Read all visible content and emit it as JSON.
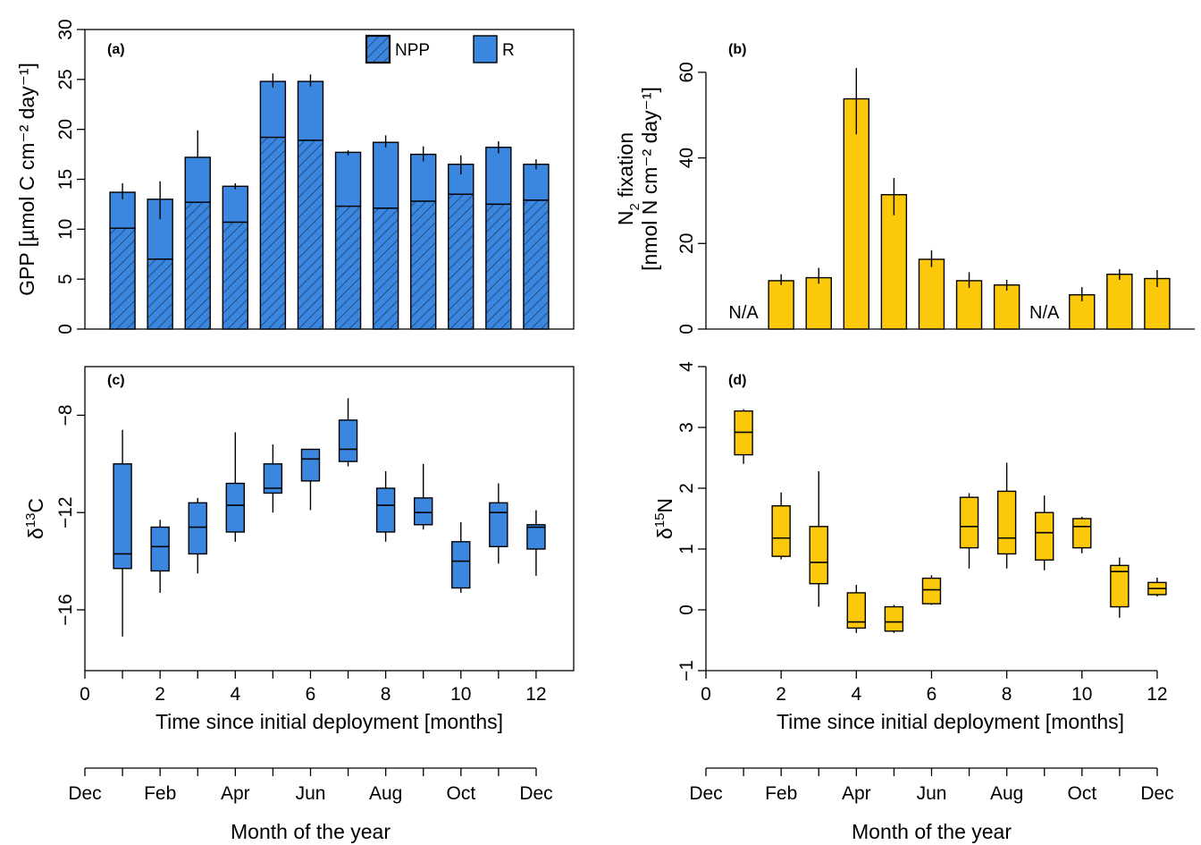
{
  "colors": {
    "blue": "#3b87e0",
    "yellow": "#fcc80a",
    "hatch": "#1a3c63"
  },
  "month_axis": {
    "labels": [
      "Dec",
      "Feb",
      "Apr",
      "Jun",
      "Aug",
      "Oct",
      "Dec"
    ],
    "title": "Month of the year"
  },
  "chart_data": [
    {
      "id": "a",
      "panel_label": "(a)",
      "type": "bar",
      "stacked": true,
      "ylabel": "GPP [µmol C cm⁻² day⁻¹]",
      "ylim": [
        0,
        30
      ],
      "yticks": [
        0,
        5,
        10,
        15,
        20,
        25,
        30
      ],
      "xlim": [
        0,
        13
      ],
      "x": [
        1,
        2,
        3,
        4,
        5,
        6,
        7,
        8,
        9,
        10,
        11,
        12
      ],
      "legend": [
        "NPP",
        "R"
      ],
      "series": [
        {
          "name": "NPP",
          "pattern": "hatched",
          "values": [
            10.1,
            7.0,
            12.7,
            10.7,
            19.2,
            18.9,
            12.3,
            12.1,
            12.8,
            13.5,
            12.5,
            12.9
          ]
        },
        {
          "name": "R",
          "values": [
            3.6,
            6.0,
            4.5,
            3.6,
            5.6,
            5.9,
            5.4,
            6.6,
            4.7,
            3.0,
            5.7,
            3.6
          ]
        }
      ],
      "totals": [
        13.7,
        13.0,
        17.2,
        14.3,
        24.8,
        24.8,
        17.7,
        18.7,
        17.5,
        16.5,
        18.2,
        16.5
      ],
      "error_upper": [
        14.6,
        14.8,
        19.9,
        14.6,
        25.6,
        25.5,
        17.9,
        19.4,
        18.3,
        17.4,
        18.8,
        17.0
      ],
      "error_lower": [
        13.0,
        11.0,
        17.2,
        14.0,
        24.2,
        24.3,
        17.4,
        18.2,
        16.8,
        15.5,
        17.6,
        16.0
      ]
    },
    {
      "id": "b",
      "panel_label": "(b)",
      "type": "bar",
      "ylabel_line1": "N",
      "ylabel_sub": "2",
      "ylabel_line1_rest": " fixation",
      "ylabel_line2": "[nmol N cm⁻² day⁻¹]",
      "ylim": [
        0,
        60
      ],
      "yticks": [
        0,
        20,
        40,
        60
      ],
      "xlim": [
        0,
        13
      ],
      "x": [
        1,
        2,
        3,
        4,
        5,
        6,
        7,
        8,
        9,
        10,
        11,
        12
      ],
      "values": [
        null,
        11.3,
        12.0,
        53.8,
        31.4,
        16.3,
        11.3,
        10.3,
        null,
        8.0,
        12.8,
        11.8
      ],
      "error_upper": [
        null,
        12.8,
        14.3,
        61.0,
        35.3,
        18.4,
        13.3,
        11.5,
        null,
        9.8,
        14.0,
        13.8
      ],
      "error_lower": [
        null,
        10.3,
        10.6,
        45.5,
        26.6,
        14.5,
        9.6,
        9.0,
        null,
        6.5,
        11.5,
        9.8
      ],
      "na_label": "N/A",
      "xlabel": "Time since initial deployment [months]"
    },
    {
      "id": "c",
      "panel_label": "(c)",
      "type": "box",
      "ylabel_delta": "δ",
      "ylabel_sup": "13",
      "ylabel_elem": "C",
      "ylim": [
        -18.5,
        -6.0
      ],
      "yticks": [
        -8,
        -12,
        -16
      ],
      "ytick_labels": [
        "−8",
        "−12",
        "−16"
      ],
      "xlim": [
        0,
        13
      ],
      "xticks": [
        0,
        2,
        4,
        6,
        8,
        10,
        12
      ],
      "x": [
        1,
        2,
        3,
        4,
        5,
        6,
        7,
        8,
        9,
        10,
        11,
        12
      ],
      "whisker_low": [
        -17.1,
        -15.3,
        -14.5,
        -13.2,
        -12.0,
        -11.9,
        -10.1,
        -13.2,
        -12.7,
        -15.3,
        -14.1,
        -14.6
      ],
      "q1": [
        -14.3,
        -14.4,
        -13.7,
        -12.8,
        -11.2,
        -10.7,
        -9.9,
        -12.8,
        -12.5,
        -15.1,
        -13.4,
        -13.5
      ],
      "median": [
        -13.7,
        -13.4,
        -12.6,
        -11.7,
        -11.0,
        -9.8,
        -9.4,
        -11.7,
        -12.0,
        -14.0,
        -12.0,
        -12.6
      ],
      "q3": [
        -10.0,
        -12.6,
        -11.6,
        -10.8,
        -10.0,
        -9.4,
        -8.2,
        -11.0,
        -11.4,
        -13.2,
        -11.6,
        -12.5
      ],
      "whisker_high": [
        -8.6,
        -12.3,
        -11.4,
        -8.7,
        -9.2,
        -9.4,
        -7.3,
        -10.3,
        -10.0,
        -12.4,
        -10.8,
        -11.9
      ],
      "xlabel": "Time since initial deployment [months]"
    },
    {
      "id": "d",
      "panel_label": "(d)",
      "type": "box",
      "ylabel_delta": "δ",
      "ylabel_sup": "15",
      "ylabel_elem": "N",
      "ylim": [
        -1,
        4
      ],
      "yticks": [
        -1,
        0,
        1,
        2,
        3,
        4
      ],
      "ytick_labels": [
        "−1",
        "0",
        "1",
        "2",
        "3",
        "4"
      ],
      "xlim": [
        0,
        12.5
      ],
      "xticks": [
        0,
        2,
        4,
        6,
        8,
        10,
        12
      ],
      "x": [
        1,
        2,
        3,
        4,
        5,
        6,
        7,
        8,
        9,
        10,
        11,
        12
      ],
      "whisker_low": [
        2.4,
        0.83,
        0.05,
        -0.38,
        -0.38,
        0.08,
        0.68,
        0.68,
        0.65,
        0.93,
        -0.13,
        0.22
      ],
      "q1": [
        2.55,
        0.88,
        0.43,
        -0.3,
        -0.35,
        0.1,
        1.02,
        0.92,
        0.82,
        1.02,
        0.05,
        0.25
      ],
      "median": [
        2.92,
        1.18,
        0.78,
        -0.2,
        -0.2,
        0.33,
        1.37,
        1.18,
        1.27,
        1.37,
        0.63,
        0.35
      ],
      "q3": [
        3.27,
        1.71,
        1.37,
        0.28,
        0.05,
        0.52,
        1.85,
        1.95,
        1.6,
        1.5,
        0.73,
        0.45
      ],
      "whisker_high": [
        3.3,
        1.93,
        2.28,
        0.41,
        0.08,
        0.57,
        1.92,
        2.42,
        1.88,
        1.53,
        0.86,
        0.53
      ],
      "xlabel": "Time since initial deployment [months]"
    }
  ]
}
